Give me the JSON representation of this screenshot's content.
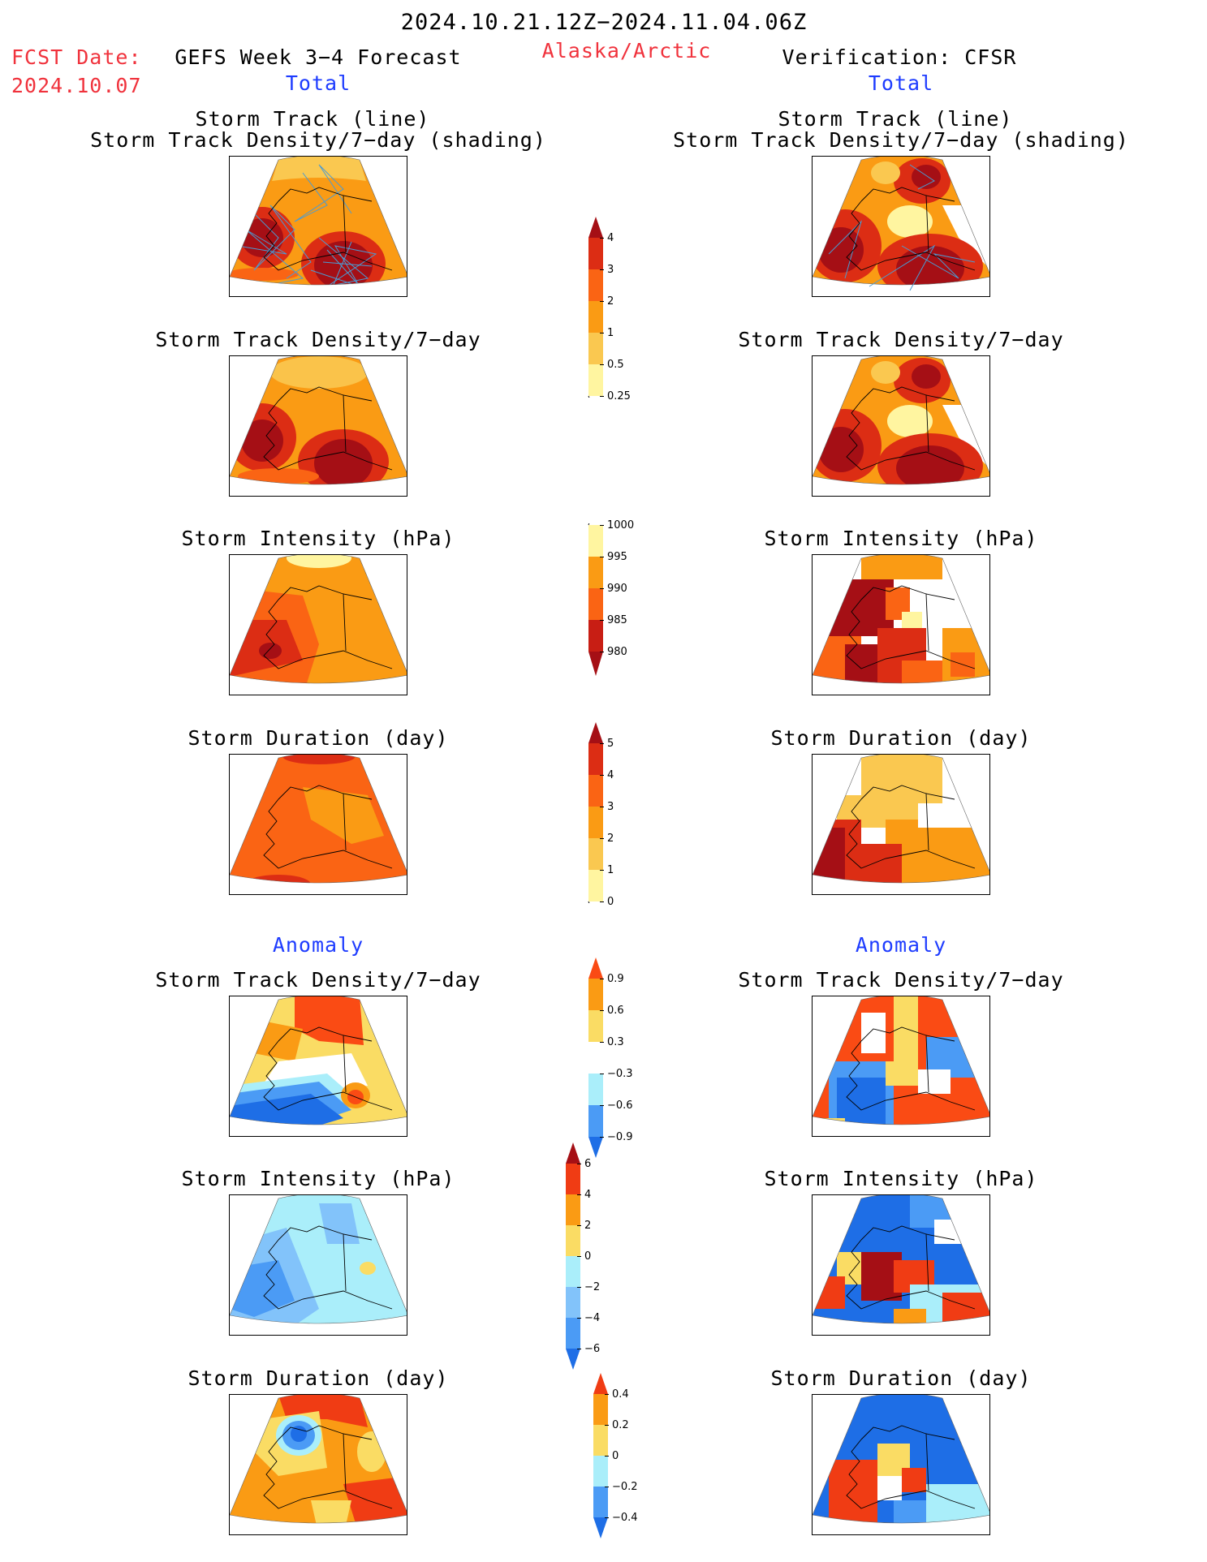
{
  "header": {
    "period": "2024.10.21.12Z−2024.11.04.06Z",
    "fcst_label": "FCST Date:",
    "fcst_date": "2024.10.07",
    "left_title": "GEFS Week 3−4 Forecast",
    "region": "Alaska/Arctic",
    "right_title": "Verification: CFSR"
  },
  "sections": {
    "total": "Total",
    "anomaly": "Anomaly"
  },
  "panel_titles": {
    "track_line": "Storm Track (line)",
    "track_shading": "Storm Track Density/7−day (shading)",
    "density": "Storm Track Density/7−day",
    "intensity": "Storm Intensity (hPa)",
    "duration": "Storm Duration (day)"
  },
  "colorbars": {
    "density": {
      "ticks": [
        "4",
        "3",
        "2",
        "1",
        "0.5",
        "0.25"
      ],
      "colors": [
        "#a50f15",
        "#dc2d14",
        "#fa6414",
        "#fa9b14",
        "#fac850",
        "#fff5a0"
      ]
    },
    "intensity": {
      "ticks": [
        "1000",
        "995",
        "990",
        "985",
        "980"
      ],
      "colors": [
        "#fff5a0",
        "#fa9b14",
        "#fa6414",
        "#c81e14",
        "#a50f15"
      ]
    },
    "duration": {
      "ticks": [
        "5",
        "4",
        "3",
        "2",
        "1",
        "0"
      ],
      "colors": [
        "#a50f15",
        "#dc2d14",
        "#fa6414",
        "#fa9b14",
        "#fac850",
        "#fff5a0"
      ]
    },
    "density_anom": {
      "ticks": [
        "0.9",
        "0.6",
        "0.3",
        "−0.3",
        "−0.6",
        "−0.9"
      ],
      "colors": [
        "#fa4b14",
        "#fa9b14",
        "#fadc64",
        "#ffffff",
        "#aaeefa",
        "#4b9bf5",
        "#1e6ee6"
      ]
    },
    "intensity_anom": {
      "ticks": [
        "6",
        "4",
        "2",
        "0",
        "−2",
        "−4",
        "−6"
      ],
      "colors": [
        "#a50f15",
        "#f03c14",
        "#fa9b14",
        "#fadc64",
        "#aaeefa",
        "#82c3fa",
        "#4b9bf5",
        "#1e6ee6"
      ]
    },
    "duration_anom": {
      "ticks": [
        "0.4",
        "0.2",
        "0",
        "−0.2",
        "−0.4"
      ],
      "colors": [
        "#f03c14",
        "#fa9b14",
        "#fadc64",
        "#aaeefa",
        "#4b9bf5",
        "#1e6ee6"
      ]
    }
  }
}
